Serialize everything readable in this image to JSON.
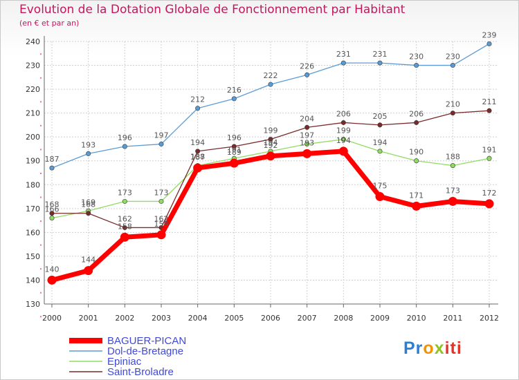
{
  "header": {
    "title": "Evolution de la Dotation Globale de Fonctionnement par Habitant",
    "subtitle": "(en € et par an)"
  },
  "chart_data": {
    "type": "line",
    "title": "Evolution de la Dotation Globale de Fonctionnement par Habitant",
    "subtitle": "(en € et par an)",
    "xlabel": "",
    "ylabel": "",
    "x": [
      "2000",
      "2001",
      "2002",
      "2003",
      "2004",
      "2005",
      "2006",
      "2007",
      "2008",
      "2009",
      "2010",
      "2011",
      "2012"
    ],
    "ylim": [
      130,
      240
    ],
    "yticks": [
      "130",
      "140",
      "150",
      "160",
      "170",
      "180",
      "190",
      "200",
      "210",
      "220",
      "230",
      "240"
    ],
    "grid": true,
    "legend_position": "bottom-left",
    "series": [
      {
        "name": "BAGUER-PICAN",
        "color": "#ff0000",
        "emphasis": true,
        "values": [
          140,
          144,
          158,
          159,
          187,
          189,
          192,
          193,
          194,
          175,
          171,
          173,
          172
        ]
      },
      {
        "name": "Dol-de-Bretagne",
        "color": "#5b9bd5",
        "emphasis": false,
        "values": [
          187,
          193,
          196,
          197,
          212,
          216,
          222,
          226,
          231,
          231,
          230,
          230,
          239
        ]
      },
      {
        "name": "Epiniac",
        "color": "#90dc60",
        "emphasis": false,
        "values": [
          166,
          169,
          173,
          173,
          188,
          191,
          194,
          197,
          199,
          194,
          190,
          188,
          191
        ]
      },
      {
        "name": "Saint-Broladre",
        "color": "#7a2a2a",
        "emphasis": false,
        "values": [
          168,
          168,
          162,
          162,
          194,
          196,
          199,
          204,
          206,
          205,
          206,
          210,
          211
        ]
      }
    ]
  },
  "legend": {
    "items": [
      {
        "label": "BAGUER-PICAN",
        "color": "#ff0000"
      },
      {
        "label": "Dol-de-Bretagne",
        "color": "#5b9bd5"
      },
      {
        "label": "Epiniac",
        "color": "#90dc60"
      },
      {
        "label": "Saint-Broladre",
        "color": "#7a2a2a"
      }
    ]
  },
  "branding": {
    "logo_parts": [
      "Pr",
      "o",
      "x",
      "iti"
    ]
  }
}
